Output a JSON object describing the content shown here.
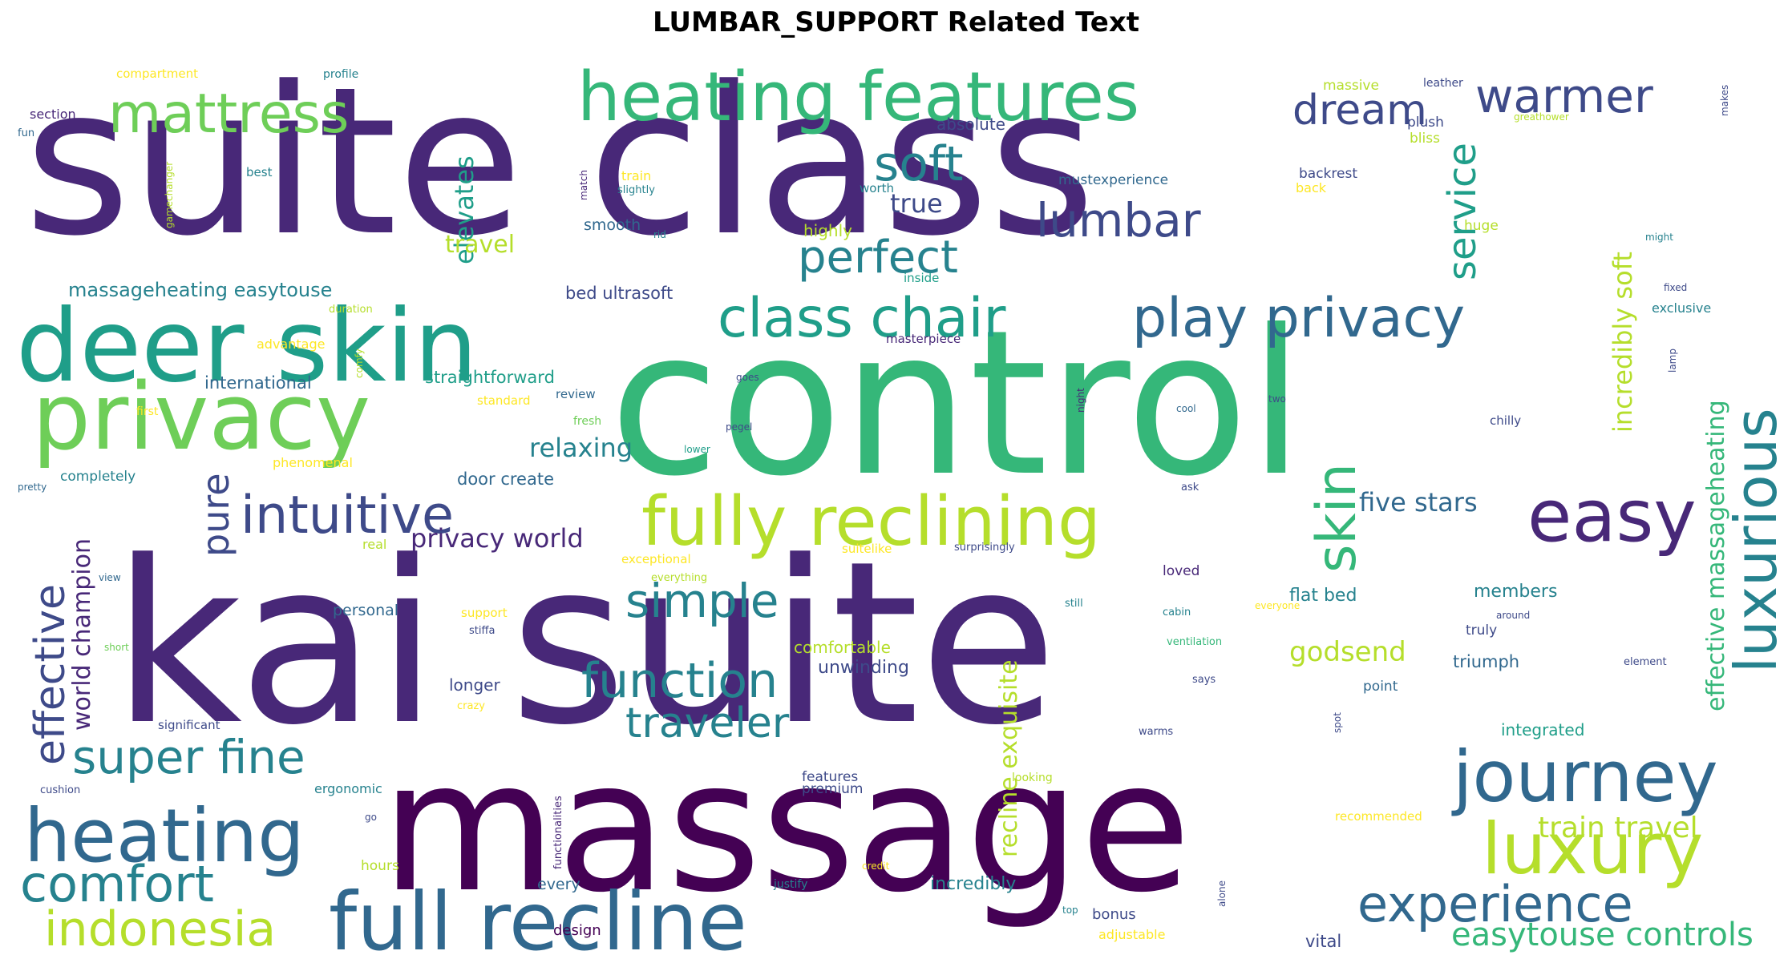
{
  "title": "LUMBAR_SUPPORT Related Text",
  "palette": {
    "dark_purple": "#440154",
    "indigo": "#482878",
    "blue": "#3e4a89",
    "steel": "#31688e",
    "teal": "#26828e",
    "sea": "#1f9e89",
    "green": "#35b779",
    "lime": "#6ece58",
    "yellow_green": "#b5de2b",
    "yellow": "#fde725"
  },
  "words": [
    {
      "text": "suite class",
      "color": "#482878",
      "weight": 1.0
    },
    {
      "text": "control",
      "color": "#35b779",
      "weight": 0.95
    },
    {
      "text": "kai suite",
      "color": "#482878",
      "weight": 0.98
    },
    {
      "text": "massage",
      "color": "#440154",
      "weight": 0.9
    },
    {
      "text": "deer skin",
      "color": "#1f9e89",
      "weight": 0.5
    },
    {
      "text": "privacy",
      "color": "#6ece58",
      "weight": 0.45
    },
    {
      "text": "heating features",
      "color": "#35b779",
      "weight": 0.35
    },
    {
      "text": "mattress",
      "color": "#6ece58",
      "weight": 0.3
    },
    {
      "text": "warmer",
      "color": "#3e4a89",
      "weight": 0.28
    },
    {
      "text": "dream",
      "color": "#3e4a89",
      "weight": 0.22
    },
    {
      "text": "soft",
      "color": "#26828e",
      "weight": 0.26
    },
    {
      "text": "service",
      "color": "#1f9e89",
      "weight": 0.22
    },
    {
      "text": "lumbar",
      "color": "#3e4a89",
      "weight": 0.25
    },
    {
      "text": "perfect",
      "color": "#26828e",
      "weight": 0.25
    },
    {
      "text": "class chair",
      "color": "#1f9e89",
      "weight": 0.3
    },
    {
      "text": "play privacy",
      "color": "#31688e",
      "weight": 0.3
    },
    {
      "text": "luxurious",
      "color": "#26828e",
      "weight": 0.3
    },
    {
      "text": "intuitive",
      "color": "#3e4a89",
      "weight": 0.3
    },
    {
      "text": "fully reclining",
      "color": "#b5de2b",
      "weight": 0.35
    },
    {
      "text": "easy",
      "color": "#482878",
      "weight": 0.3
    },
    {
      "text": "skin",
      "color": "#35b779",
      "weight": 0.3
    },
    {
      "text": "simple",
      "color": "#26828e",
      "weight": 0.25
    },
    {
      "text": "function",
      "color": "#26828e",
      "weight": 0.25
    },
    {
      "text": "traveler",
      "color": "#26828e",
      "weight": 0.25
    },
    {
      "text": "super fine",
      "color": "#26828e",
      "weight": 0.25
    },
    {
      "text": "heating",
      "color": "#31688e",
      "weight": 0.32
    },
    {
      "text": "comfort",
      "color": "#26828e",
      "weight": 0.28
    },
    {
      "text": "indonesia",
      "color": "#b5de2b",
      "weight": 0.28
    },
    {
      "text": "full recline",
      "color": "#31688e",
      "weight": 0.4
    },
    {
      "text": "journey",
      "color": "#31688e",
      "weight": 0.32
    },
    {
      "text": "luxury",
      "color": "#b5de2b",
      "weight": 0.32
    },
    {
      "text": "experience",
      "color": "#31688e",
      "weight": 0.28
    },
    {
      "text": "easytouse controls",
      "color": "#35b779",
      "weight": 0.18
    },
    {
      "text": "train travel",
      "color": "#b5de2b",
      "weight": 0.16
    },
    {
      "text": "effective",
      "color": "#3e4a89",
      "weight": 0.22
    },
    {
      "text": "world champion",
      "color": "#482878",
      "weight": 0.14
    },
    {
      "text": "pure",
      "color": "#3e4a89",
      "weight": 0.2
    },
    {
      "text": "elevates",
      "color": "#1f9e89",
      "weight": 0.14
    },
    {
      "text": "incredibly soft",
      "color": "#b5de2b",
      "weight": 0.14
    },
    {
      "text": "effective massageheating",
      "color": "#35b779",
      "weight": 0.14
    },
    {
      "text": "recline exquisite",
      "color": "#b5de2b",
      "weight": 0.14
    },
    {
      "text": "five stars",
      "color": "#31688e",
      "weight": 0.14
    },
    {
      "text": "privacy world",
      "color": "#482878",
      "weight": 0.14
    },
    {
      "text": "relaxing",
      "color": "#26828e",
      "weight": 0.14
    },
    {
      "text": "godsend",
      "color": "#b5de2b",
      "weight": 0.14
    },
    {
      "text": "travel",
      "color": "#b5de2b",
      "weight": 0.13
    },
    {
      "text": "true",
      "color": "#3e4a89",
      "weight": 0.13
    },
    {
      "text": "massageheating easytouse",
      "color": "#26828e",
      "weight": 0.12
    },
    {
      "text": "bed ultrasoft",
      "color": "#3e4a89",
      "weight": 0.1
    },
    {
      "text": "flat bed",
      "color": "#26828e",
      "weight": 0.1
    },
    {
      "text": "members",
      "color": "#26828e",
      "weight": 0.1
    },
    {
      "text": "comfortable",
      "color": "#b5de2b",
      "weight": 0.09
    },
    {
      "text": "unwinding",
      "color": "#3e4a89",
      "weight": 0.1
    },
    {
      "text": "triumph",
      "color": "#31688e",
      "weight": 0.09
    },
    {
      "text": "integrated",
      "color": "#1f9e89",
      "weight": 0.09
    },
    {
      "text": "incredibly",
      "color": "#26828e",
      "weight": 0.09
    },
    {
      "text": "straightforward",
      "color": "#1f9e89",
      "weight": 0.09
    },
    {
      "text": "international",
      "color": "#31688e",
      "weight": 0.09
    },
    {
      "text": "door create",
      "color": "#31688e",
      "weight": 0.09
    },
    {
      "text": "personal",
      "color": "#31688e",
      "weight": 0.08
    },
    {
      "text": "absolute",
      "color": "#3e4a89",
      "weight": 0.08
    },
    {
      "text": "mustexperience",
      "color": "#31688e",
      "weight": 0.07
    },
    {
      "text": "backrest",
      "color": "#3e4a89",
      "weight": 0.07
    },
    {
      "text": "highly",
      "color": "#b5de2b",
      "weight": 0.08
    },
    {
      "text": "smooth",
      "color": "#31688e",
      "weight": 0.07
    },
    {
      "text": "premium",
      "color": "#3e4a89",
      "weight": 0.07
    },
    {
      "text": "features",
      "color": "#3e4a89",
      "weight": 0.07
    },
    {
      "text": "longer",
      "color": "#3e4a89",
      "weight": 0.07
    },
    {
      "text": "loved",
      "color": "#482878",
      "weight": 0.07
    },
    {
      "text": "truly",
      "color": "#3e4a89",
      "weight": 0.07
    },
    {
      "text": "point",
      "color": "#31688e",
      "weight": 0.07
    },
    {
      "text": "bonus",
      "color": "#3e4a89",
      "weight": 0.07
    },
    {
      "text": "vital",
      "color": "#3e4a89",
      "weight": 0.07
    },
    {
      "text": "design",
      "color": "#440154",
      "weight": 0.07
    },
    {
      "text": "every",
      "color": "#31688e",
      "weight": 0.07
    },
    {
      "text": "hours",
      "color": "#b5de2b",
      "weight": 0.06
    },
    {
      "text": "massive",
      "color": "#b5de2b",
      "weight": 0.06
    },
    {
      "text": "plush",
      "color": "#3e4a89",
      "weight": 0.06
    },
    {
      "text": "leather",
      "color": "#3e4a89",
      "weight": 0.05
    },
    {
      "text": "bliss",
      "color": "#b5de2b",
      "weight": 0.06
    },
    {
      "text": "huge",
      "color": "#b5de2b",
      "weight": 0.06
    },
    {
      "text": "exclusive",
      "color": "#26828e",
      "weight": 0.06
    },
    {
      "text": "chilly",
      "color": "#3e4a89",
      "weight": 0.05
    },
    {
      "text": "compartment",
      "color": "#fde725",
      "weight": 0.05
    },
    {
      "text": "profile",
      "color": "#26828e",
      "weight": 0.05
    },
    {
      "text": "section",
      "color": "#482878",
      "weight": 0.06
    },
    {
      "text": "fun",
      "color": "#31688e",
      "weight": 0.05
    },
    {
      "text": "best",
      "color": "#26828e",
      "weight": 0.05
    },
    {
      "text": "duration",
      "color": "#b5de2b",
      "weight": 0.05
    },
    {
      "text": "advantage",
      "color": "#fde725",
      "weight": 0.05
    },
    {
      "text": "first",
      "color": "#fde725",
      "weight": 0.05
    },
    {
      "text": "standard",
      "color": "#fde725",
      "weight": 0.05
    },
    {
      "text": "review",
      "color": "#31688e",
      "weight": 0.05
    },
    {
      "text": "fresh",
      "color": "#6ece58",
      "weight": 0.05
    },
    {
      "text": "phenomenal",
      "color": "#fde725",
      "weight": 0.05
    },
    {
      "text": "completely",
      "color": "#26828e",
      "weight": 0.06
    },
    {
      "text": "pretty",
      "color": "#31688e",
      "weight": 0.04
    },
    {
      "text": "real",
      "color": "#b5de2b",
      "weight": 0.05
    },
    {
      "text": "exceptional",
      "color": "#fde725",
      "weight": 0.05
    },
    {
      "text": "everything",
      "color": "#b5de2b",
      "weight": 0.04
    },
    {
      "text": "view",
      "color": "#31688e",
      "weight": 0.04
    },
    {
      "text": "support",
      "color": "#fde725",
      "weight": 0.05
    },
    {
      "text": "stiffa",
      "color": "#3e4a89",
      "weight": 0.04
    },
    {
      "text": "short",
      "color": "#6ece58",
      "weight": 0.04
    },
    {
      "text": "crazy",
      "color": "#fde725",
      "weight": 0.04
    },
    {
      "text": "significant",
      "color": "#3e4a89",
      "weight": 0.05
    },
    {
      "text": "cushion",
      "color": "#3e4a89",
      "weight": 0.04
    },
    {
      "text": "ergonomic",
      "color": "#26828e",
      "weight": 0.05
    },
    {
      "text": "go",
      "color": "#3e4a89",
      "weight": 0.04
    },
    {
      "text": "justify",
      "color": "#26828e",
      "weight": 0.04
    },
    {
      "text": "credit",
      "color": "#fde725",
      "weight": 0.04
    },
    {
      "text": "recommended",
      "color": "#fde725",
      "weight": 0.05
    },
    {
      "text": "looking",
      "color": "#b5de2b",
      "weight": 0.04
    },
    {
      "text": "adjustable",
      "color": "#fde725",
      "weight": 0.05
    },
    {
      "text": "top",
      "color": "#26828e",
      "weight": 0.04
    },
    {
      "text": "train",
      "color": "#fde725",
      "weight": 0.05
    },
    {
      "text": "slightly",
      "color": "#26828e",
      "weight": 0.04
    },
    {
      "text": "worth",
      "color": "#26828e",
      "weight": 0.05
    },
    {
      "text": "rid",
      "color": "#26828e",
      "weight": 0.04
    },
    {
      "text": "inside",
      "color": "#1f9e89",
      "weight": 0.05
    },
    {
      "text": "masterpiece",
      "color": "#482878",
      "weight": 0.05
    },
    {
      "text": "goes",
      "color": "#3e4a89",
      "weight": 0.04
    },
    {
      "text": "lower",
      "color": "#1f9e89",
      "weight": 0.04
    },
    {
      "text": "pegel",
      "color": "#3e4a89",
      "weight": 0.04
    },
    {
      "text": "cool",
      "color": "#31688e",
      "weight": 0.04
    },
    {
      "text": "two",
      "color": "#3e4a89",
      "weight": 0.04
    },
    {
      "text": "ask",
      "color": "#3e4a89",
      "weight": 0.04
    },
    {
      "text": "suitelike",
      "color": "#fde725",
      "weight": 0.05
    },
    {
      "text": "surprisingly",
      "color": "#3e4a89",
      "weight": 0.04
    },
    {
      "text": "still",
      "color": "#26828e",
      "weight": 0.04
    },
    {
      "text": "cabin",
      "color": "#26828e",
      "weight": 0.04
    },
    {
      "text": "everyone",
      "color": "#fde725",
      "weight": 0.04
    },
    {
      "text": "around",
      "color": "#3e4a89",
      "weight": 0.04
    },
    {
      "text": "ventilation",
      "color": "#35b779",
      "weight": 0.04
    },
    {
      "text": "says",
      "color": "#3e4a89",
      "weight": 0.04
    },
    {
      "text": "element",
      "color": "#3e4a89",
      "weight": 0.04
    },
    {
      "text": "warms",
      "color": "#3e4a89",
      "weight": 0.04
    },
    {
      "text": "fixed",
      "color": "#3e4a89",
      "weight": 0.04
    },
    {
      "text": "might",
      "color": "#26828e",
      "weight": 0.04
    },
    {
      "text": "greathower",
      "color": "#b5de2b",
      "weight": 0.04
    },
    {
      "text": "back",
      "color": "#fde725",
      "weight": 0.05
    },
    {
      "text": "gamechanger",
      "color": "#b5de2b",
      "weight": 0.04
    },
    {
      "text": "match",
      "color": "#482878",
      "weight": 0.04
    },
    {
      "text": "makes",
      "color": "#3e4a89",
      "weight": 0.04
    },
    {
      "text": "comfy",
      "color": "#b5de2b",
      "weight": 0.04
    },
    {
      "text": "night",
      "color": "#482878",
      "weight": 0.04
    },
    {
      "text": "lamp",
      "color": "#3e4a89",
      "weight": 0.04
    },
    {
      "text": "functionalities",
      "color": "#482878",
      "weight": 0.04
    },
    {
      "text": "alone",
      "color": "#3e4a89",
      "weight": 0.04
    },
    {
      "text": "spot",
      "color": "#3e4a89",
      "weight": 0.04
    }
  ]
}
